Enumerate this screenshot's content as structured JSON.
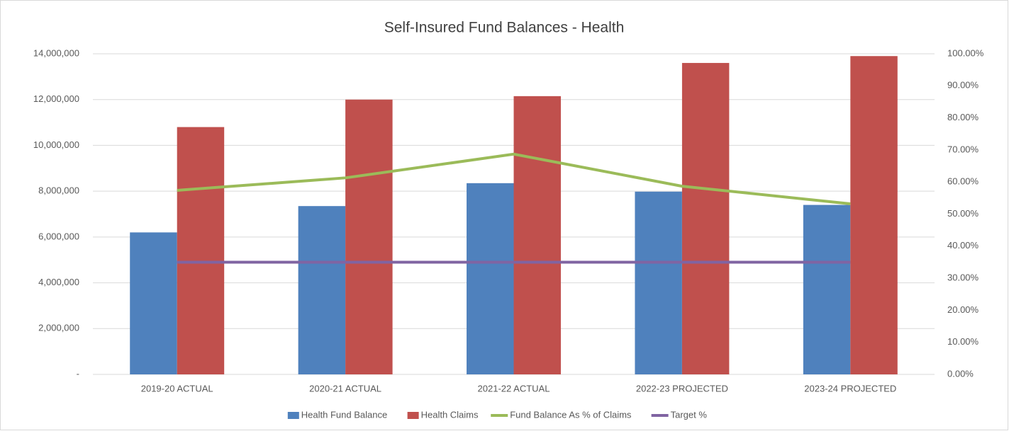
{
  "chart_data": {
    "type": "bar",
    "title": "Self-Insured Fund Balances - Health",
    "categories": [
      "2019-20 ACTUAL",
      "2020-21 ACTUAL",
      "2021-22 ACTUAL",
      "2022-23 PROJECTED",
      "2023-24 PROJECTED"
    ],
    "series": [
      {
        "name": "Health Fund Balance",
        "type": "bar",
        "color": "#4f81bd",
        "values": [
          6200000,
          7350000,
          8350000,
          7980000,
          7400000
        ]
      },
      {
        "name": "Health Claims",
        "type": "bar",
        "color": "#c0504d",
        "values": [
          10800000,
          12000000,
          12150000,
          13600000,
          13900000
        ]
      },
      {
        "name": "Fund Balance As % of Claims",
        "type": "line",
        "axis": "y2",
        "color": "#9bbb59",
        "values": [
          57.4,
          61.3,
          68.7,
          58.7,
          53.2
        ]
      },
      {
        "name": "Target %",
        "type": "line",
        "axis": "y2",
        "color": "#8064a2",
        "values": [
          35,
          35,
          35,
          35,
          35
        ]
      }
    ],
    "ylim": [
      0,
      14000000
    ],
    "yticks": [
      {
        "value": 0,
        "label": "-"
      },
      {
        "value": 2000000,
        "label": "2,000,000"
      },
      {
        "value": 4000000,
        "label": "4,000,000"
      },
      {
        "value": 6000000,
        "label": "6,000,000"
      },
      {
        "value": 8000000,
        "label": "8,000,000"
      },
      {
        "value": 10000000,
        "label": "10,000,000"
      },
      {
        "value": 12000000,
        "label": "12,000,000"
      },
      {
        "value": 14000000,
        "label": "14,000,000"
      }
    ],
    "y2lim": [
      0,
      100
    ],
    "y2ticks": [
      {
        "value": 0,
        "label": "0.00%"
      },
      {
        "value": 10,
        "label": "10.00%"
      },
      {
        "value": 20,
        "label": "20.00%"
      },
      {
        "value": 30,
        "label": "30.00%"
      },
      {
        "value": 40,
        "label": "40.00%"
      },
      {
        "value": 50,
        "label": "50.00%"
      },
      {
        "value": 60,
        "label": "60.00%"
      },
      {
        "value": 70,
        "label": "70.00%"
      },
      {
        "value": 80,
        "label": "80.00%"
      },
      {
        "value": 90,
        "label": "90.00%"
      },
      {
        "value": 100,
        "label": "100.00%"
      }
    ],
    "grid": true,
    "legend": "bottom"
  }
}
